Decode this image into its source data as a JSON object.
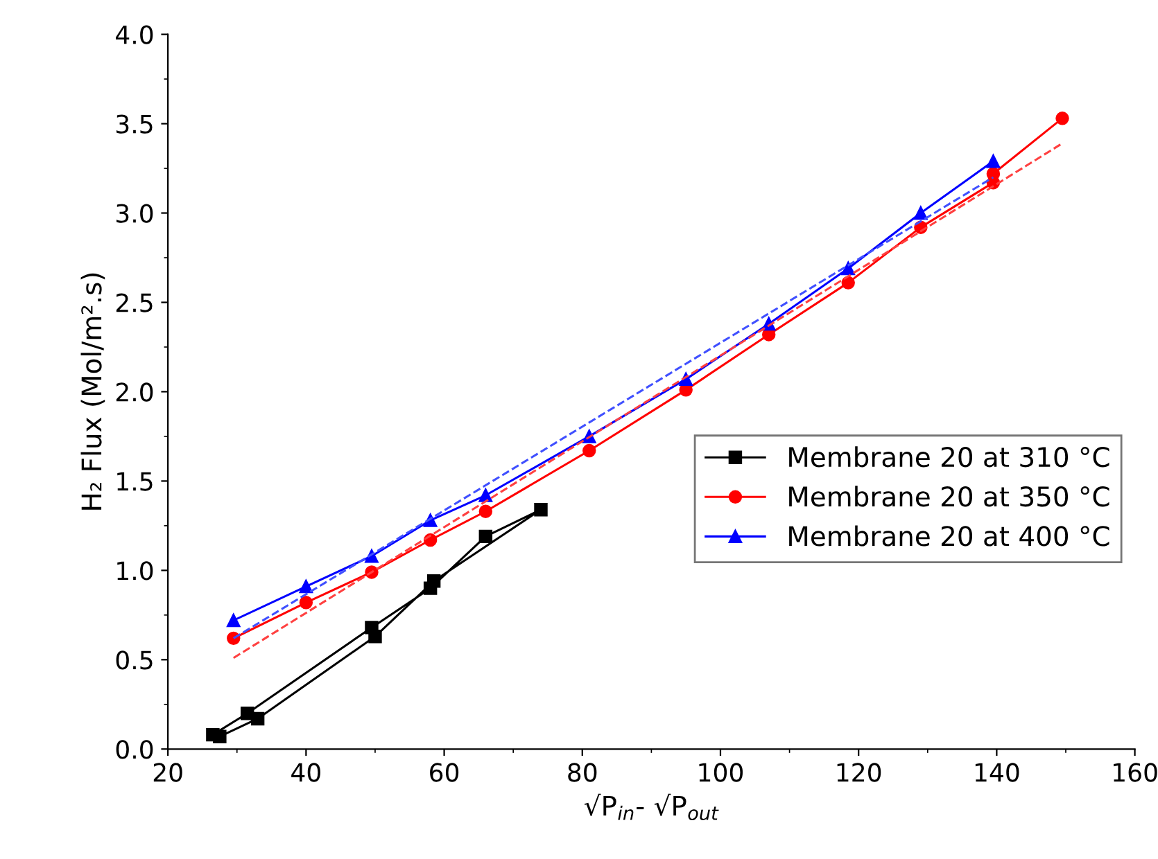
{
  "chart_data": {
    "type": "line",
    "xlabel": "√P$_{in}$- √P$_{out}$",
    "ylabel": "H₂ Flux (Mol/m².s)",
    "xlim": [
      20,
      160
    ],
    "xticks": [
      20,
      40,
      60,
      80,
      100,
      120,
      140,
      160
    ],
    "ylim": [
      0,
      4.0
    ],
    "yticks": [
      {
        "value": 0,
        "label": "0.0"
      },
      0.5,
      {
        "value": 1,
        "label": "1.0"
      },
      1.5,
      {
        "value": 2,
        "label": "2.0"
      },
      2.5,
      {
        "value": 3,
        "label": "3.0"
      },
      3.5,
      {
        "value": 4,
        "label": "4.0"
      }
    ],
    "grid": false,
    "legend": "right",
    "series": [
      {
        "name": "Membrane 20 at 310 °C",
        "color": "#000000",
        "marker": "square",
        "line_style": "solid",
        "x": [
          26.5,
          31.5,
          49.5,
          58,
          66,
          74,
          58.5,
          50,
          33,
          27.5
        ],
        "values": [
          0.08,
          0.2,
          0.68,
          0.9,
          1.19,
          1.34,
          0.94,
          0.63,
          0.17,
          0.07
        ]
      },
      {
        "name": "Membrane 20 at 350 °C",
        "color": "#ff0000",
        "marker": "circle",
        "line_style": "solid",
        "x": [
          29.5,
          40,
          49.5,
          58,
          66,
          81,
          95,
          107,
          118.5,
          129,
          139.5,
          139.5,
          149.5
        ],
        "values": [
          0.62,
          0.82,
          0.99,
          1.17,
          1.33,
          1.67,
          2.01,
          2.32,
          2.61,
          2.92,
          3.17,
          3.22,
          3.53
        ]
      },
      {
        "name": "Membrane 20 at 400 °C",
        "color": "#0000ff",
        "marker": "triangle",
        "line_style": "solid",
        "x": [
          29.5,
          40,
          49.5,
          58,
          66,
          81,
          95,
          107,
          118.5,
          129,
          139.5
        ],
        "values": [
          0.72,
          0.91,
          1.08,
          1.28,
          1.42,
          1.75,
          2.07,
          2.38,
          2.69,
          3.0,
          3.29
        ]
      },
      {
        "color": "#ff4040",
        "marker": "none",
        "line_style": "dashed",
        "x": [
          29.5,
          149.5
        ],
        "values": [
          0.51,
          3.39
        ]
      },
      {
        "color": "#4050ff",
        "marker": "none",
        "line_style": "dashed",
        "x": [
          29.5,
          139.5
        ],
        "values": [
          0.62,
          3.2
        ]
      }
    ]
  }
}
